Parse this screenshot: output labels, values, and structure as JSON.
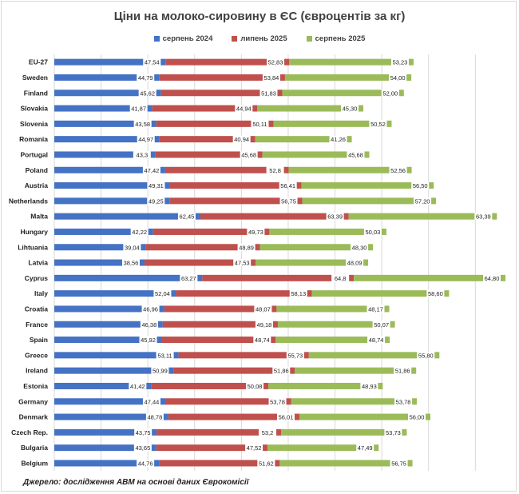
{
  "chart_data": {
    "type": "bar",
    "orientation": "horizontal-stacked",
    "title": "Ціни на молоко-сировину в ЄС (євроцентів за кг)",
    "grid": true,
    "legend_position": "top",
    "series": [
      {
        "name": "серпень 2024",
        "color": "#4472c4",
        "labels": [
          "47,54",
          "44,79",
          "45,62",
          "41,87",
          "43,58",
          "44,97",
          "43,3",
          "47,42",
          "49,31",
          "49,25",
          "62,45",
          "42,22",
          "39,04",
          "38,56",
          "63,27",
          "52,04",
          "46,96",
          "46,38",
          "45,92",
          "53,11",
          "50,99",
          "41,42",
          "47,44",
          "48,78",
          "43,75",
          "43,65",
          "44,76"
        ],
        "values": [
          47.54,
          44.79,
          45.62,
          41.87,
          43.58,
          44.97,
          43.3,
          47.42,
          49.31,
          49.25,
          62.45,
          42.22,
          39.04,
          38.56,
          63.27,
          52.04,
          46.96,
          46.38,
          45.92,
          53.11,
          50.99,
          41.42,
          47.44,
          48.78,
          43.75,
          43.65,
          44.76
        ]
      },
      {
        "name": "липень 2025",
        "color": "#c0504d",
        "labels": [
          "52,83",
          "53,84",
          "51,83",
          "44,94",
          "50,11",
          "40,94",
          "45,68",
          "52,8",
          "56,41",
          "56,75",
          "63,39",
          "49,73",
          "48,89",
          "47,53",
          "64,8",
          "58,13",
          "48,07",
          "49,18",
          "48,74",
          "55,73",
          "51,86",
          "50,08",
          "53,78",
          "56,01",
          "53,2",
          "47,52",
          "51,62"
        ],
        "values": [
          52.83,
          53.84,
          51.83,
          44.94,
          50.11,
          40.94,
          45.68,
          52.8,
          56.41,
          56.75,
          63.39,
          49.73,
          48.89,
          47.53,
          64.8,
          58.13,
          48.07,
          49.18,
          48.74,
          55.73,
          51.86,
          50.08,
          53.78,
          56.01,
          53.2,
          47.52,
          51.62
        ]
      },
      {
        "name": "серпень 2025",
        "color": "#9bbb59",
        "labels": [
          "53,23",
          "54,00",
          "52,00",
          "45,30",
          "50,52",
          "41,26",
          "45,68",
          "52,56",
          "56,50",
          "57,20",
          "63,39",
          "50,03",
          "48,30",
          "48,09",
          "64,80",
          "58,60",
          "48,17",
          "50,07",
          "48,74",
          "55,80",
          "51,86",
          "48,93",
          "53,78",
          "56,00",
          "53,73",
          "47,49",
          "56,75"
        ],
        "values": [
          53.23,
          54.0,
          52.0,
          45.3,
          50.52,
          41.26,
          45.68,
          52.56,
          56.5,
          57.2,
          63.39,
          50.03,
          48.3,
          48.09,
          64.8,
          58.6,
          48.17,
          50.07,
          48.74,
          55.8,
          51.86,
          48.93,
          53.78,
          56.0,
          53.73,
          47.49,
          56.75
        ]
      }
    ],
    "categories": [
      "EU-27",
      "Sweden",
      "Finland",
      "Slovakia",
      "Slovenia",
      "Romania",
      "Portugal",
      "Poland",
      "Austria",
      "Netherlands",
      "Malta",
      "Hungary",
      "Lihtuania",
      "Latvia",
      "Cyprus",
      "Italy",
      "Croatia",
      "France",
      "Spain",
      "Greece",
      "Ireland",
      "Estonia",
      "Germany",
      "Denmark",
      "Czech Rep.",
      "Bulgaria",
      "Belgium"
    ]
  },
  "source": "Джерело: дослідження АВМ на основі даних Єврокомісії"
}
